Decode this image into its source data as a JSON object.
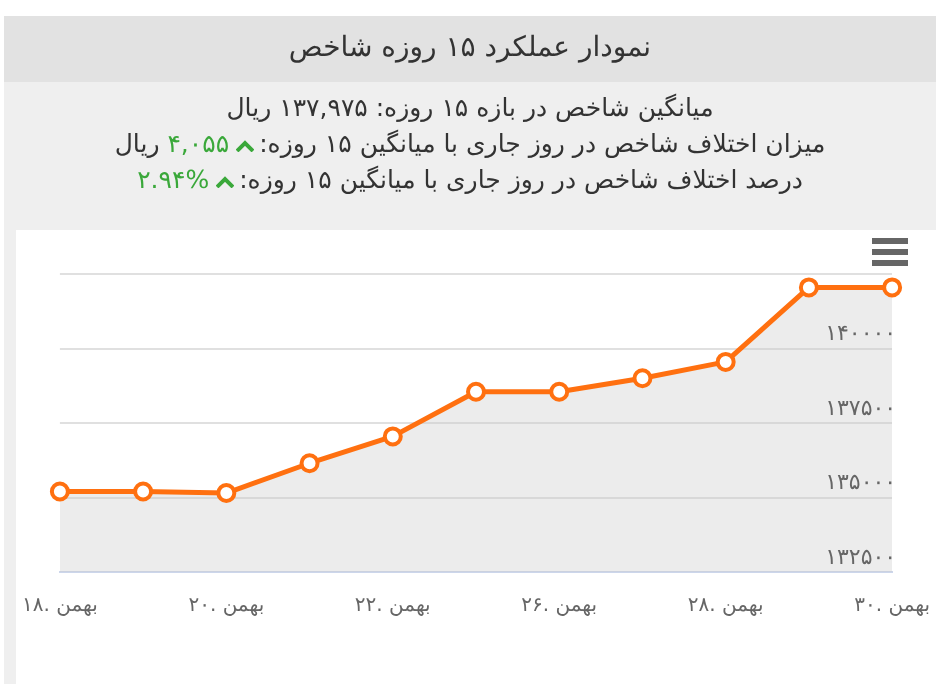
{
  "chart_data": {
    "type": "area",
    "title": "نمودار عملکرد ۱۵ روزه شاخص",
    "annotations": [
      "میانگین شاخص در بازه ۱۵ روزه: ۱۳۷,۹۷۵ ریال",
      "میزان اختلاف شاخص در روز جاری با میانگین ۱۵ روزه: ۴,۰۵۵ ریال",
      "درصد اختلاف شاخص در روز جاری با میانگین ۱۵ روزه: %۲.۹۴"
    ],
    "categories": [
      "۱۸. بهمن",
      null,
      "۲۰. بهمن",
      null,
      "۲۲. بهمن",
      null,
      "۲۶. بهمن",
      null,
      "۲۸. بهمن",
      null,
      "۳۰. بهمن"
    ],
    "series": [
      {
        "color": "#ff7010",
        "values": [
          135200,
          135200,
          135150,
          136150,
          137050,
          138550,
          138550,
          139000,
          139550,
          142050,
          142050
        ]
      }
    ],
    "ylim": [
      132500,
      142500
    ],
    "yticks": [
      {
        "value": 132500,
        "label": "۱۳۲۵۰۰"
      },
      {
        "value": 135000,
        "label": "۱۳۵۰۰۰"
      },
      {
        "value": 137500,
        "label": "۱۳۷۵۰۰"
      },
      {
        "value": 140000,
        "label": "۱۴۰۰۰۰"
      },
      {
        "value": 142500,
        "label": null
      }
    ],
    "grid": "y",
    "marker": "circle",
    "line_style": "solid",
    "legend": false
  }
}
